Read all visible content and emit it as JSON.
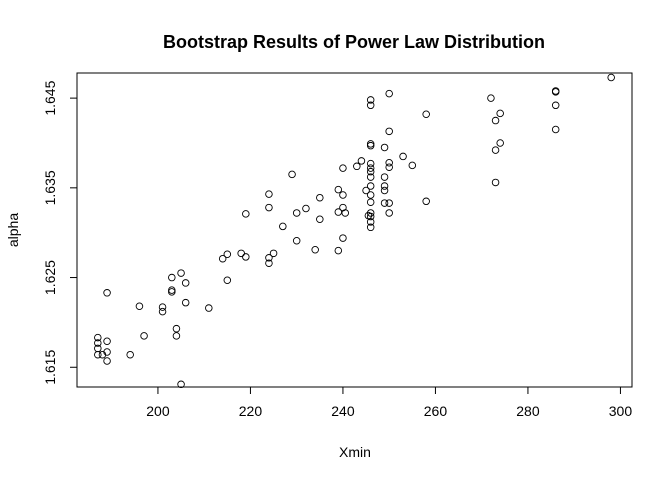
{
  "chart_data": {
    "type": "scatter",
    "title": "Bootstrap Results of Power Law Distribution",
    "xlabel": "Xmin",
    "ylabel": "alpha",
    "xlim": [
      182.5,
      302.5
    ],
    "ylim": [
      1.6128,
      1.6478
    ],
    "x_ticks": [
      200,
      220,
      240,
      260,
      280,
      300
    ],
    "x_tick_labels": [
      "200",
      "220",
      "240",
      "260",
      "280",
      "300"
    ],
    "y_ticks": [
      1.615,
      1.625,
      1.635,
      1.645
    ],
    "y_tick_labels": [
      "1.615",
      "1.625",
      "1.635",
      "1.645"
    ],
    "grid": false,
    "legend": "none",
    "points": [
      {
        "x": 187.0,
        "y": 1.6183
      },
      {
        "x": 187.0,
        "y": 1.6177
      },
      {
        "x": 187.0,
        "y": 1.6171
      },
      {
        "x": 187.0,
        "y": 1.6164
      },
      {
        "x": 188.0,
        "y": 1.6164
      },
      {
        "x": 189.0,
        "y": 1.6167
      },
      {
        "x": 189.0,
        "y": 1.6157
      },
      {
        "x": 189.0,
        "y": 1.6179
      },
      {
        "x": 189.0,
        "y": 1.6233
      },
      {
        "x": 194.0,
        "y": 1.6164
      },
      {
        "x": 196.0,
        "y": 1.6218
      },
      {
        "x": 197.0,
        "y": 1.6185
      },
      {
        "x": 201.0,
        "y": 1.6212
      },
      {
        "x": 201.0,
        "y": 1.6217
      },
      {
        "x": 203.0,
        "y": 1.6234
      },
      {
        "x": 203.0,
        "y": 1.6236
      },
      {
        "x": 203.0,
        "y": 1.625
      },
      {
        "x": 204.0,
        "y": 1.6185
      },
      {
        "x": 204.0,
        "y": 1.6193
      },
      {
        "x": 205.0,
        "y": 1.6255
      },
      {
        "x": 205.0,
        "y": 1.6131
      },
      {
        "x": 206.0,
        "y": 1.6244
      },
      {
        "x": 206.0,
        "y": 1.6222
      },
      {
        "x": 211.0,
        "y": 1.6216
      },
      {
        "x": 214.0,
        "y": 1.6271
      },
      {
        "x": 215.0,
        "y": 1.6276
      },
      {
        "x": 215.0,
        "y": 1.6247
      },
      {
        "x": 218.0,
        "y": 1.6277
      },
      {
        "x": 219.0,
        "y": 1.6273
      },
      {
        "x": 219.0,
        "y": 1.6321
      },
      {
        "x": 224.0,
        "y": 1.6343
      },
      {
        "x": 224.0,
        "y": 1.6328
      },
      {
        "x": 224.0,
        "y": 1.6272
      },
      {
        "x": 224.0,
        "y": 1.6266
      },
      {
        "x": 225.0,
        "y": 1.6277
      },
      {
        "x": 227.0,
        "y": 1.6307
      },
      {
        "x": 229.0,
        "y": 1.6365
      },
      {
        "x": 230.0,
        "y": 1.6322
      },
      {
        "x": 230.0,
        "y": 1.6291
      },
      {
        "x": 232.0,
        "y": 1.6327
      },
      {
        "x": 234.0,
        "y": 1.6281
      },
      {
        "x": 235.0,
        "y": 1.6315
      },
      {
        "x": 235.0,
        "y": 1.6339
      },
      {
        "x": 239.0,
        "y": 1.628
      },
      {
        "x": 239.0,
        "y": 1.6323
      },
      {
        "x": 239.0,
        "y": 1.6348
      },
      {
        "x": 240.0,
        "y": 1.6294
      },
      {
        "x": 240.0,
        "y": 1.6328
      },
      {
        "x": 240.0,
        "y": 1.6342
      },
      {
        "x": 240.0,
        "y": 1.6372
      },
      {
        "x": 240.5,
        "y": 1.6322
      },
      {
        "x": 243.0,
        "y": 1.6374
      },
      {
        "x": 244.0,
        "y": 1.638
      },
      {
        "x": 245.0,
        "y": 1.6347
      },
      {
        "x": 246.0,
        "y": 1.6448
      },
      {
        "x": 246.0,
        "y": 1.6442
      },
      {
        "x": 246.0,
        "y": 1.6399
      },
      {
        "x": 246.0,
        "y": 1.6397
      },
      {
        "x": 246.0,
        "y": 1.6377
      },
      {
        "x": 246.0,
        "y": 1.6372
      },
      {
        "x": 246.0,
        "y": 1.6368
      },
      {
        "x": 246.0,
        "y": 1.6362
      },
      {
        "x": 246.0,
        "y": 1.6352
      },
      {
        "x": 246.0,
        "y": 1.6342
      },
      {
        "x": 246.0,
        "y": 1.6334
      },
      {
        "x": 246.0,
        "y": 1.6322
      },
      {
        "x": 246.0,
        "y": 1.6318
      },
      {
        "x": 246.0,
        "y": 1.6312
      },
      {
        "x": 246.0,
        "y": 1.6306
      },
      {
        "x": 245.5,
        "y": 1.6319
      },
      {
        "x": 249.0,
        "y": 1.6395
      },
      {
        "x": 249.0,
        "y": 1.6362
      },
      {
        "x": 249.0,
        "y": 1.6352
      },
      {
        "x": 249.0,
        "y": 1.6347
      },
      {
        "x": 249.0,
        "y": 1.6333
      },
      {
        "x": 250.0,
        "y": 1.6455
      },
      {
        "x": 250.0,
        "y": 1.6413
      },
      {
        "x": 250.0,
        "y": 1.6378
      },
      {
        "x": 250.0,
        "y": 1.6373
      },
      {
        "x": 250.0,
        "y": 1.6333
      },
      {
        "x": 250.0,
        "y": 1.6322
      },
      {
        "x": 253.0,
        "y": 1.6385
      },
      {
        "x": 255.0,
        "y": 1.6375
      },
      {
        "x": 258.0,
        "y": 1.6432
      },
      {
        "x": 258.0,
        "y": 1.6335
      },
      {
        "x": 272.0,
        "y": 1.645
      },
      {
        "x": 273.0,
        "y": 1.6425
      },
      {
        "x": 273.0,
        "y": 1.6392
      },
      {
        "x": 273.0,
        "y": 1.6356
      },
      {
        "x": 274.0,
        "y": 1.6433
      },
      {
        "x": 274.0,
        "y": 1.64
      },
      {
        "x": 286.0,
        "y": 1.6458
      },
      {
        "x": 286.0,
        "y": 1.6457
      },
      {
        "x": 286.0,
        "y": 1.6442
      },
      {
        "x": 286.0,
        "y": 1.6415
      },
      {
        "x": 298.0,
        "y": 1.6473
      }
    ]
  }
}
